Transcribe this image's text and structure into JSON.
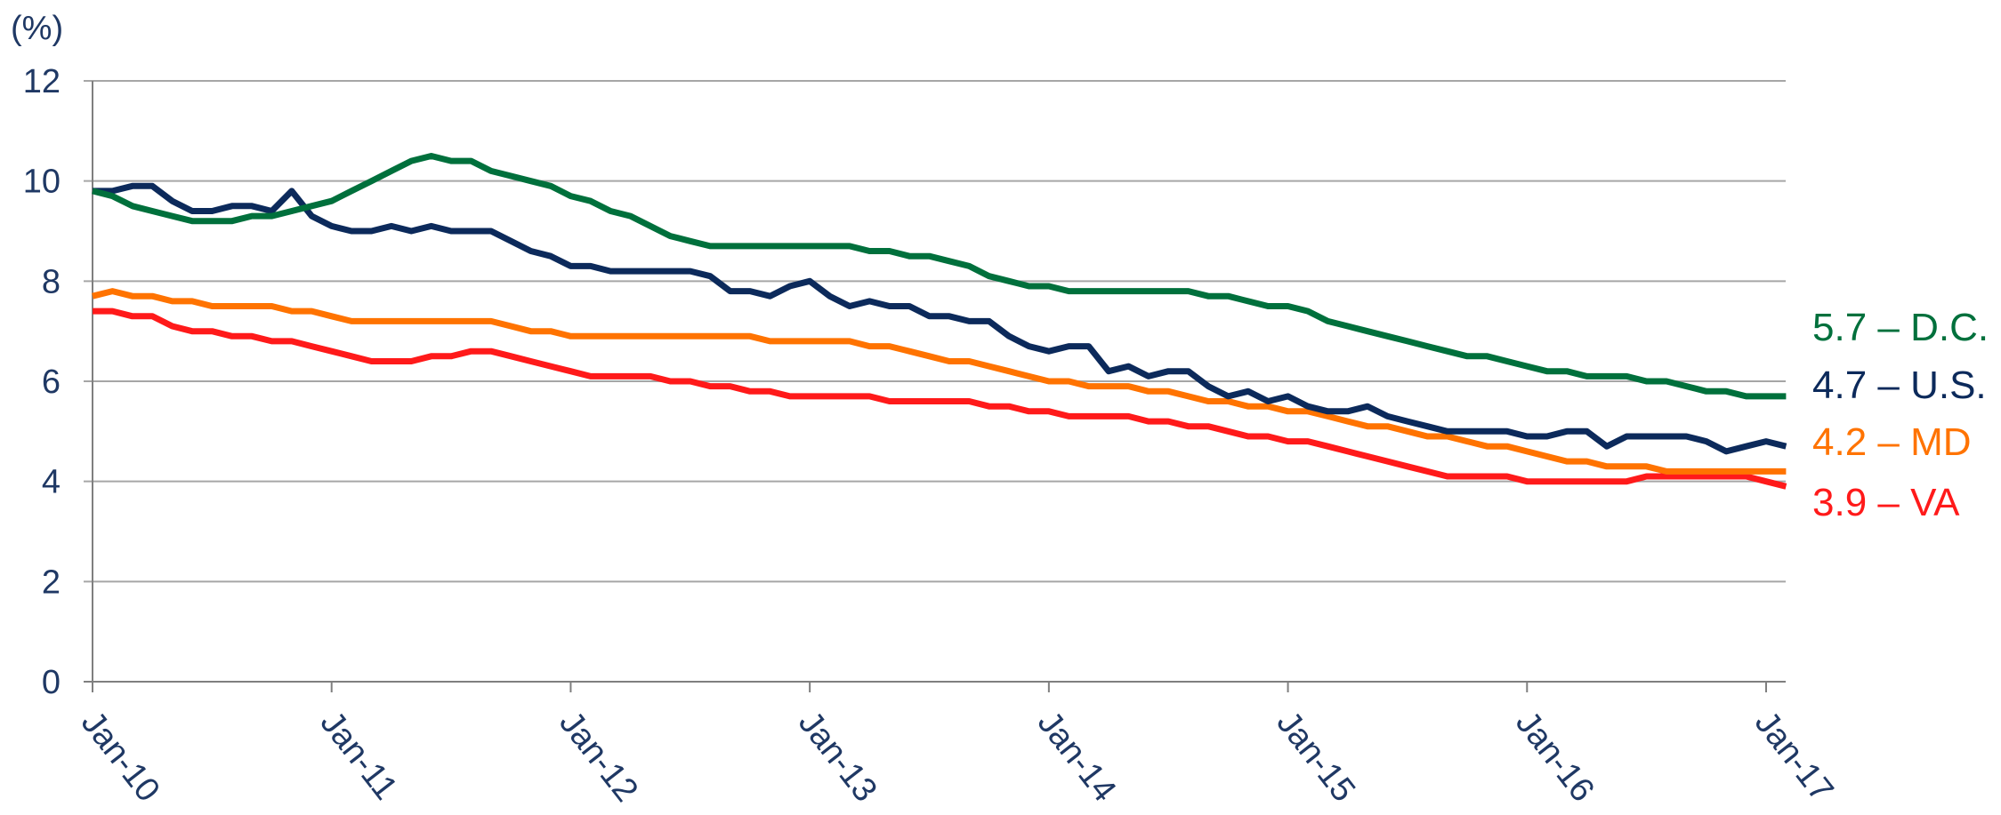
{
  "chart_data": {
    "type": "line",
    "y_unit": "(%)",
    "categories": [
      "Jan-10",
      null,
      null,
      null,
      null,
      null,
      null,
      null,
      null,
      null,
      null,
      null,
      "Jan-11",
      null,
      null,
      null,
      null,
      null,
      null,
      null,
      null,
      null,
      null,
      null,
      "Jan-12",
      null,
      null,
      null,
      null,
      null,
      null,
      null,
      null,
      null,
      null,
      null,
      "Jan-13",
      null,
      null,
      null,
      null,
      null,
      null,
      null,
      null,
      null,
      null,
      null,
      "Jan-14",
      null,
      null,
      null,
      null,
      null,
      null,
      null,
      null,
      null,
      null,
      null,
      "Jan-15",
      null,
      null,
      null,
      null,
      null,
      null,
      null,
      null,
      null,
      null,
      null,
      "Jan-16",
      null,
      null,
      null,
      null,
      null,
      null,
      null,
      null,
      null,
      null,
      null,
      "Jan-17",
      null
    ],
    "ylim": [
      0,
      12
    ],
    "yticks": [
      0,
      2,
      4,
      6,
      8,
      10,
      12
    ],
    "grid": true,
    "series": [
      {
        "name": "D.C.",
        "label": "5.7 – D.C.",
        "color": "#00703c",
        "values": [
          9.8,
          9.7,
          9.5,
          9.4,
          9.3,
          9.2,
          9.2,
          9.2,
          9.3,
          9.3,
          9.4,
          9.5,
          9.6,
          9.8,
          10.0,
          10.2,
          10.4,
          10.5,
          10.4,
          10.4,
          10.2,
          10.1,
          10.0,
          9.9,
          9.7,
          9.6,
          9.4,
          9.3,
          9.1,
          8.9,
          8.8,
          8.7,
          8.7,
          8.7,
          8.7,
          8.7,
          8.7,
          8.7,
          8.7,
          8.6,
          8.6,
          8.5,
          8.5,
          8.4,
          8.3,
          8.1,
          8.0,
          7.9,
          7.9,
          7.8,
          7.8,
          7.8,
          7.8,
          7.8,
          7.8,
          7.8,
          7.7,
          7.7,
          7.6,
          7.5,
          7.5,
          7.4,
          7.2,
          7.1,
          7.0,
          6.9,
          6.8,
          6.7,
          6.6,
          6.5,
          6.5,
          6.4,
          6.3,
          6.2,
          6.2,
          6.1,
          6.1,
          6.1,
          6.0,
          6.0,
          5.9,
          5.8,
          5.8,
          5.7,
          5.7,
          5.7
        ]
      },
      {
        "name": "U.S.",
        "label": "4.7 – U.S.",
        "color": "#0c2a5b",
        "values": [
          9.8,
          9.8,
          9.9,
          9.9,
          9.6,
          9.4,
          9.4,
          9.5,
          9.5,
          9.4,
          9.8,
          9.3,
          9.1,
          9.0,
          9.0,
          9.1,
          9.0,
          9.1,
          9.0,
          9.0,
          9.0,
          8.8,
          8.6,
          8.5,
          8.3,
          8.3,
          8.2,
          8.2,
          8.2,
          8.2,
          8.2,
          8.1,
          7.8,
          7.8,
          7.7,
          7.9,
          8.0,
          7.7,
          7.5,
          7.6,
          7.5,
          7.5,
          7.3,
          7.3,
          7.2,
          7.2,
          6.9,
          6.7,
          6.6,
          6.7,
          6.7,
          6.2,
          6.3,
          6.1,
          6.2,
          6.2,
          5.9,
          5.7,
          5.8,
          5.6,
          5.7,
          5.5,
          5.4,
          5.4,
          5.5,
          5.3,
          5.2,
          5.1,
          5.0,
          5.0,
          5.0,
          5.0,
          4.9,
          4.9,
          5.0,
          5.0,
          4.7,
          4.9,
          4.9,
          4.9,
          4.9,
          4.8,
          4.6,
          4.7,
          4.8,
          4.7
        ]
      },
      {
        "name": "MD",
        "label": "4.2 – MD",
        "color": "#ff7300",
        "values": [
          7.7,
          7.8,
          7.7,
          7.7,
          7.6,
          7.6,
          7.5,
          7.5,
          7.5,
          7.5,
          7.4,
          7.4,
          7.3,
          7.2,
          7.2,
          7.2,
          7.2,
          7.2,
          7.2,
          7.2,
          7.2,
          7.1,
          7.0,
          7.0,
          6.9,
          6.9,
          6.9,
          6.9,
          6.9,
          6.9,
          6.9,
          6.9,
          6.9,
          6.9,
          6.8,
          6.8,
          6.8,
          6.8,
          6.8,
          6.7,
          6.7,
          6.6,
          6.5,
          6.4,
          6.4,
          6.3,
          6.2,
          6.1,
          6.0,
          6.0,
          5.9,
          5.9,
          5.9,
          5.8,
          5.8,
          5.7,
          5.6,
          5.6,
          5.5,
          5.5,
          5.4,
          5.4,
          5.3,
          5.2,
          5.1,
          5.1,
          5.0,
          4.9,
          4.9,
          4.8,
          4.7,
          4.7,
          4.6,
          4.5,
          4.4,
          4.4,
          4.3,
          4.3,
          4.3,
          4.2,
          4.2,
          4.2,
          4.2,
          4.2,
          4.2,
          4.2
        ]
      },
      {
        "name": "VA",
        "label": "3.9 – VA",
        "color": "#ff1a1a",
        "values": [
          7.4,
          7.4,
          7.3,
          7.3,
          7.1,
          7.0,
          7.0,
          6.9,
          6.9,
          6.8,
          6.8,
          6.7,
          6.6,
          6.5,
          6.4,
          6.4,
          6.4,
          6.5,
          6.5,
          6.6,
          6.6,
          6.5,
          6.4,
          6.3,
          6.2,
          6.1,
          6.1,
          6.1,
          6.1,
          6.0,
          6.0,
          5.9,
          5.9,
          5.8,
          5.8,
          5.7,
          5.7,
          5.7,
          5.7,
          5.7,
          5.6,
          5.6,
          5.6,
          5.6,
          5.6,
          5.5,
          5.5,
          5.4,
          5.4,
          5.3,
          5.3,
          5.3,
          5.3,
          5.2,
          5.2,
          5.1,
          5.1,
          5.0,
          4.9,
          4.9,
          4.8,
          4.8,
          4.7,
          4.6,
          4.5,
          4.4,
          4.3,
          4.2,
          4.1,
          4.1,
          4.1,
          4.1,
          4.0,
          4.0,
          4.0,
          4.0,
          4.0,
          4.0,
          4.1,
          4.1,
          4.1,
          4.1,
          4.1,
          4.1,
          4.0,
          3.9
        ]
      }
    ]
  }
}
